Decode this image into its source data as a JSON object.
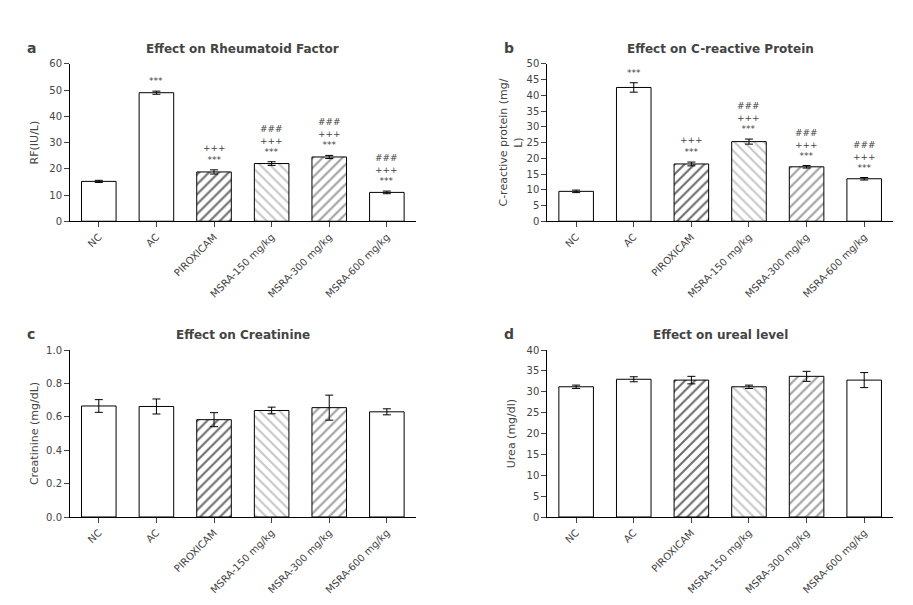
{
  "chart_data": [
    {
      "type": "bar",
      "title": "Effect on Rheumatoid Factor",
      "label": "a",
      "ylabel": "RF(IU/L)",
      "categories": [
        "NC",
        "AC",
        "PIROXICAM",
        "MSRA-150 mg/kg",
        "MSRA-300 mg/kg",
        "MSRA-600 mg/kg"
      ],
      "values": [
        15.2,
        49.0,
        18.8,
        22.0,
        24.5,
        11.0
      ],
      "errors": [
        0.4,
        0.6,
        0.8,
        0.7,
        0.6,
        0.5
      ],
      "annotations": [
        null,
        "***",
        "+++\n***",
        "###\n+++\n***",
        "###\n+++\n***",
        "###\n+++\n***"
      ],
      "colors": [
        "white",
        "white",
        "#6d6d6d",
        "#c8c8c8",
        "#a0a0a0",
        "white"
      ],
      "ylim": [
        0,
        60
      ],
      "yticks": [
        0,
        10,
        20,
        30,
        40,
        50,
        60
      ],
      "grid": false
    },
    {
      "type": "bar",
      "title": "Effect on C-reactive Protein",
      "label": "b",
      "ylabel": "C-reactive protein (mg/\nL)",
      "categories": [
        "NC",
        "AC",
        "PIROXICAM",
        "MSRA-150 mg/kg",
        "MSRA-300 mg/kg",
        "MSRA-600 mg/kg"
      ],
      "values": [
        9.5,
        42.5,
        18.2,
        25.3,
        17.3,
        13.5
      ],
      "errors": [
        0.4,
        1.5,
        0.6,
        0.8,
        0.4,
        0.4
      ],
      "annotations": [
        null,
        "***",
        "+++\n***",
        "###\n+++\n***",
        "###\n+++\n***",
        "###\n+++\n***"
      ],
      "colors": [
        "white",
        "white",
        "#6d6d6d",
        "#c8c8c8",
        "#a0a0a0",
        "white"
      ],
      "ylim": [
        0,
        50
      ],
      "yticks": [
        0,
        5,
        10,
        15,
        20,
        25,
        30,
        35,
        40,
        45,
        50
      ],
      "grid": false
    },
    {
      "type": "bar",
      "title": "Effect on Creatinine",
      "label": "c",
      "ylabel": "Creatinine (mg/dL)",
      "categories": [
        "NC",
        "AC",
        "PIROXICAM",
        "MSRA-150 mg/kg",
        "MSRA-300 mg/kg",
        "MSRA-600 mg/kg"
      ],
      "values": [
        0.665,
        0.662,
        0.583,
        0.638,
        0.655,
        0.63
      ],
      "errors": [
        0.038,
        0.045,
        0.042,
        0.02,
        0.075,
        0.018
      ],
      "colors": [
        "white",
        "white",
        "#6d6d6d",
        "#c8c8c8",
        "#a0a0a0",
        "white"
      ],
      "ylim": [
        0.0,
        1.0
      ],
      "yticks": [
        {
          "value": 0.0,
          "label": "0.0"
        },
        0.2,
        0.4,
        0.6,
        0.8,
        {
          "value": 1.0,
          "label": "1.0"
        }
      ],
      "grid": false
    },
    {
      "type": "bar",
      "title": "Effect on ureal level",
      "label": "d",
      "ylabel": "Urea (mg/dl)",
      "categories": [
        "NC",
        "AC",
        "PIROXICAM",
        "MSRA-150 mg/kg",
        "MSRA-300 mg/kg",
        "MSRA-600 mg/kg"
      ],
      "values": [
        31.2,
        33.0,
        32.8,
        31.2,
        33.7,
        32.8
      ],
      "errors": [
        0.4,
        0.6,
        0.9,
        0.4,
        1.2,
        1.8
      ],
      "colors": [
        "white",
        "white",
        "#6d6d6d",
        "#c8c8c8",
        "#a0a0a0",
        "white"
      ],
      "ylim": [
        0,
        40
      ],
      "yticks": [
        0,
        5,
        10,
        15,
        20,
        25,
        30,
        35,
        40
      ],
      "grid": false
    }
  ]
}
